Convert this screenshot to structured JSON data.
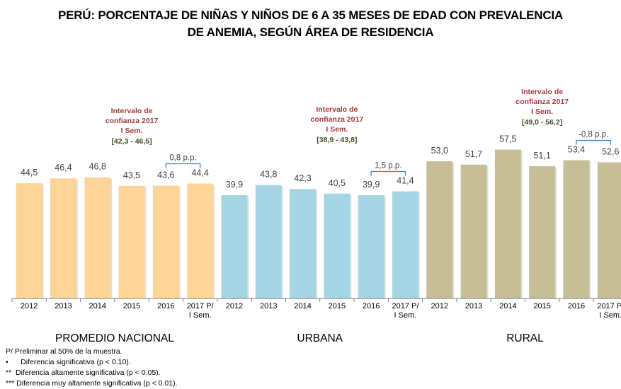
{
  "title_line1": "PERÚ: PORCENTAJE DE NIÑAS Y NIÑOS DE 6 A 35 MESES DE EDAD CON PREVALENCIA",
  "title_line2": "DE ANEMIA, SEGÚN ÁREA DE RESIDENCIA",
  "chart_data": {
    "type": "bar",
    "title": "PERÚ: PORCENTAJE DE NIÑAS Y NIÑOS DE 6 A 35 MESES DE EDAD CON PREVALENCIA DE ANEMIA, SEGÚN ÁREA DE RESIDENCIA",
    "ylim": [
      0,
      60
    ],
    "grid": false,
    "categories": [
      "2012",
      "2013",
      "2014",
      "2015",
      "2016",
      "2017 P/ I Sem."
    ],
    "groups": [
      {
        "name": "PROMEDIO NACIONAL",
        "color": "#FDD599",
        "values": [
          44.5,
          46.4,
          46.8,
          43.5,
          43.6,
          44.4
        ],
        "labels": [
          "44,5",
          "46,4",
          "46,8",
          "43,5",
          "43,6",
          "44,4"
        ],
        "ci_label_lines": [
          "Intervalo de",
          "confianza 2017",
          "I Sem."
        ],
        "ci_range": "[42,3 - 46,5]",
        "diff_label": "0,8 p.p."
      },
      {
        "name": "URBANA",
        "color": "#A5D5E3",
        "values": [
          39.9,
          43.8,
          42.3,
          40.5,
          39.9,
          41.4
        ],
        "labels": [
          "39,9",
          "43,8",
          "42,3",
          "40,5",
          "39,9",
          "41,4"
        ],
        "ci_label_lines": [
          "Intervalo de",
          "confianza 2017",
          "I Sem."
        ],
        "ci_range": "[38,9 - 43,8]",
        "diff_label": "1,5 p.p."
      },
      {
        "name": "RURAL",
        "color": "#C6BE96",
        "values": [
          53.0,
          51.7,
          57.5,
          51.1,
          53.4,
          52.6
        ],
        "labels": [
          "53,0",
          "51,7",
          "57,5",
          "51,1",
          "53,4",
          "52,6"
        ],
        "ci_label_lines": [
          "Intervalo de",
          "confianza 2017",
          "I Sem."
        ],
        "ci_range": "[49,0 - 56,2]",
        "diff_label": "-0,8 p.p."
      }
    ]
  },
  "notes": [
    "P/ Preliminar al 50% de la muestra.",
    "•      Diferencia significativa (p < 0.10).",
    "**  Diferencia altamente significativa (p < 0.05).",
    "*** Diferencia muy altamente significativa (p < 0.01)."
  ],
  "colors": {
    "ci_label": "#A33A3A",
    "ci_range": "#4A4A2A",
    "bracket": "#3F86C6",
    "axis": "#7F7F7F",
    "text": "#404040"
  }
}
